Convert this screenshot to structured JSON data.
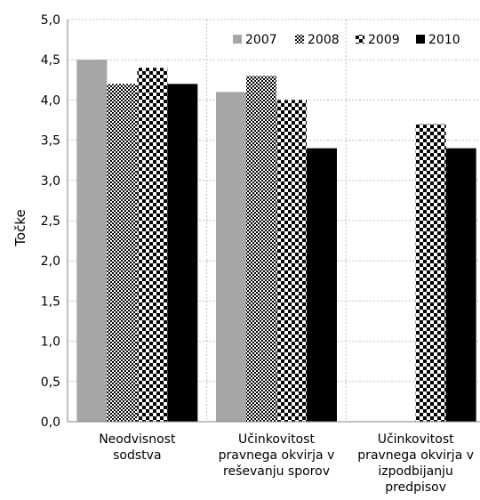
{
  "chart_data": {
    "type": "bar",
    "title": "",
    "xlabel": "",
    "ylabel": "Točke",
    "ylim": [
      0,
      5
    ],
    "ytick_step": 0.5,
    "grid": true,
    "legend_position": "top-right",
    "categories": [
      [
        "Neodvisnost",
        "sodstva"
      ],
      [
        "Učinkovitost",
        "pravnega okvirja v",
        "reševanju sporov"
      ],
      [
        "Učinkovitost",
        "pravnega okvirja v",
        "izpodbijanju",
        "predpisov"
      ]
    ],
    "series": [
      {
        "name": "2007",
        "values": [
          4.5,
          4.1,
          null
        ],
        "fill": "solid",
        "color": "#a6a6a6"
      },
      {
        "name": "2008",
        "values": [
          4.2,
          4.3,
          null
        ],
        "fill": "check-fine",
        "color": "#000000"
      },
      {
        "name": "2009",
        "values": [
          4.4,
          4.0,
          3.7
        ],
        "fill": "check-coarse",
        "color": "#000000"
      },
      {
        "name": "2010",
        "values": [
          4.2,
          3.4,
          3.4
        ],
        "fill": "solid",
        "color": "#000000"
      }
    ]
  }
}
